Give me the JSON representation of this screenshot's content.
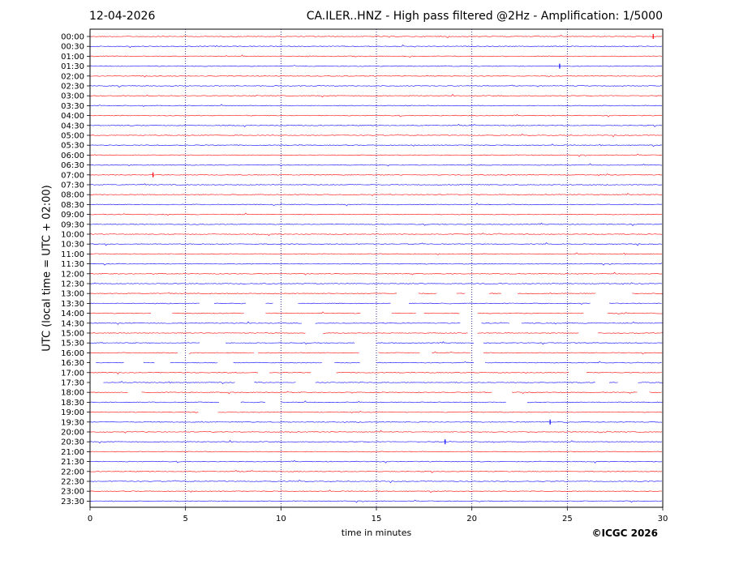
{
  "header": {
    "date": "12-04-2026",
    "title": "CA.ILER..HNZ - High pass filtered @2Hz - Amplification: 1/5000"
  },
  "copyright": "©ICGC 2026",
  "colors": {
    "red_trace": "#ff0000",
    "blue_trace": "#0000ff",
    "grid": "#000080"
  },
  "chart_data": {
    "type": "line",
    "title": "CA.ILER..HNZ - High pass filtered @2Hz - Amplification: 1/5000",
    "xlabel": "time in minutes",
    "ylabel": "UTC (local time = UTC + 02:00)",
    "xlim": [
      0,
      30
    ],
    "x_ticks": [
      "0",
      "5",
      "10",
      "15",
      "20",
      "25",
      "30"
    ],
    "x_tick_values": [
      0,
      5,
      10,
      15,
      20,
      25,
      30
    ],
    "grid": "vertical dotted lines every 5 minutes",
    "rows": [
      "00:00",
      "00:30",
      "01:00",
      "01:30",
      "02:00",
      "02:30",
      "03:00",
      "03:30",
      "04:00",
      "04:30",
      "05:00",
      "05:30",
      "06:00",
      "06:30",
      "07:00",
      "07:30",
      "08:00",
      "08:30",
      "09:00",
      "09:30",
      "10:00",
      "10:30",
      "11:00",
      "11:30",
      "12:00",
      "12:30",
      "13:00",
      "13:30",
      "14:00",
      "14:30",
      "15:00",
      "15:30",
      "16:00",
      "16:30",
      "17:00",
      "17:30",
      "18:00",
      "18:30",
      "19:00",
      "19:30",
      "20:00",
      "20:30",
      "21:00",
      "21:30",
      "22:00",
      "22:30",
      "23:00",
      "23:30"
    ],
    "row_colors": "alternating red (even rows) and blue (odd rows)",
    "gaps": [
      {
        "row": "13:00",
        "from_min": 16.1,
        "to_min": 17.2
      },
      {
        "row": "13:00",
        "from_min": 18.2,
        "to_min": 19.2
      },
      {
        "row": "13:00",
        "from_min": 19.7,
        "to_min": 20.9
      },
      {
        "row": "13:00",
        "from_min": 21.6,
        "to_min": 22.4
      },
      {
        "row": "13:00",
        "from_min": 26.5,
        "to_min": 28.4
      },
      {
        "row": "13:30",
        "from_min": 5.8,
        "to_min": 6.5
      },
      {
        "row": "13:30",
        "from_min": 8.2,
        "to_min": 9.2
      },
      {
        "row": "13:30",
        "from_min": 9.6,
        "to_min": 10.9
      },
      {
        "row": "13:30",
        "from_min": 15.8,
        "to_min": 16.7
      },
      {
        "row": "13:30",
        "from_min": 26.2,
        "to_min": 27.2
      },
      {
        "row": "14:00",
        "from_min": 3.2,
        "to_min": 4.3
      },
      {
        "row": "14:00",
        "from_min": 8.1,
        "to_min": 9.2
      },
      {
        "row": "14:00",
        "from_min": 14.2,
        "to_min": 15.8
      },
      {
        "row": "14:00",
        "from_min": 17.1,
        "to_min": 17.5
      },
      {
        "row": "14:00",
        "from_min": 19.4,
        "to_min": 20.3
      },
      {
        "row": "14:00",
        "from_min": 25.9,
        "to_min": 27.1
      },
      {
        "row": "14:30",
        "from_min": 11.1,
        "to_min": 11.8
      },
      {
        "row": "14:30",
        "from_min": 19.4,
        "to_min": 20.5
      },
      {
        "row": "14:30",
        "from_min": 22.0,
        "to_min": 22.6
      },
      {
        "row": "15:00",
        "from_min": 11.3,
        "to_min": 12.2
      },
      {
        "row": "15:00",
        "from_min": 19.8,
        "to_min": 20.3
      },
      {
        "row": "15:00",
        "from_min": 25.6,
        "to_min": 26.6
      },
      {
        "row": "15:30",
        "from_min": 5.8,
        "to_min": 7.1
      },
      {
        "row": "15:30",
        "from_min": 13.9,
        "to_min": 15.0
      },
      {
        "row": "15:30",
        "from_min": 20.1,
        "to_min": 20.6
      },
      {
        "row": "16:00",
        "from_min": 4.6,
        "to_min": 5.2
      },
      {
        "row": "16:00",
        "from_min": 8.6,
        "to_min": 8.8
      },
      {
        "row": "16:00",
        "from_min": 14.1,
        "to_min": 15.1
      },
      {
        "row": "16:00",
        "from_min": 17.3,
        "to_min": 17.9
      },
      {
        "row": "16:00",
        "from_min": 20.0,
        "to_min": 20.6
      },
      {
        "row": "16:30",
        "from_min": 0.0,
        "to_min": 0.3
      },
      {
        "row": "16:30",
        "from_min": 1.8,
        "to_min": 2.8
      },
      {
        "row": "16:30",
        "from_min": 3.4,
        "to_min": 4.2
      },
      {
        "row": "16:30",
        "from_min": 6.7,
        "to_min": 7.5
      },
      {
        "row": "16:30",
        "from_min": 12.2,
        "to_min": 12.8
      },
      {
        "row": "16:30",
        "from_min": 14.2,
        "to_min": 15.0
      },
      {
        "row": "16:30",
        "from_min": 20.1,
        "to_min": 20.7
      },
      {
        "row": "17:00",
        "from_min": 8.8,
        "to_min": 9.4
      },
      {
        "row": "17:00",
        "from_min": 11.6,
        "to_min": 12.9
      },
      {
        "row": "17:00",
        "from_min": 25.1,
        "to_min": 26.0
      },
      {
        "row": "17:30",
        "from_min": 0.0,
        "to_min": 0.7
      },
      {
        "row": "17:30",
        "from_min": 7.6,
        "to_min": 8.6
      },
      {
        "row": "17:30",
        "from_min": 10.8,
        "to_min": 11.8
      },
      {
        "row": "17:30",
        "from_min": 26.5,
        "to_min": 27.2
      },
      {
        "row": "17:30",
        "from_min": 27.7,
        "to_min": 28.7
      },
      {
        "row": "18:00",
        "from_min": 2.0,
        "to_min": 2.7
      },
      {
        "row": "18:00",
        "from_min": 21.1,
        "to_min": 22.1
      },
      {
        "row": "18:00",
        "from_min": 28.7,
        "to_min": 29.3
      },
      {
        "row": "18:30",
        "from_min": 6.8,
        "to_min": 7.9
      },
      {
        "row": "18:30",
        "from_min": 9.2,
        "to_min": 10.0
      },
      {
        "row": "18:30",
        "from_min": 21.8,
        "to_min": 22.9
      },
      {
        "row": "19:00",
        "from_min": 5.7,
        "to_min": 6.7
      }
    ],
    "events": [
      {
        "row": "07:00",
        "minute": 3.3,
        "note": "small burst"
      },
      {
        "row": "20:30",
        "minute": 18.6,
        "note": "spike"
      },
      {
        "row": "19:30",
        "minute": 24.1,
        "note": "spike"
      },
      {
        "row": "01:30",
        "minute": 24.6,
        "note": "spike"
      },
      {
        "row": "00:00",
        "minute": 29.5,
        "note": "spike"
      }
    ]
  }
}
